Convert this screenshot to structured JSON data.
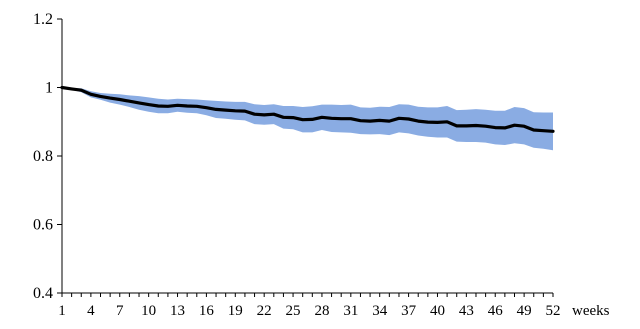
{
  "chart_data": {
    "type": "area",
    "xlabel": "weeks",
    "ylabel": "",
    "title": "",
    "xlim": [
      1,
      52
    ],
    "ylim": [
      0.4,
      1.2
    ],
    "y_ticks": [
      "0.4",
      "0.6",
      "0.8",
      "1",
      "1.2"
    ],
    "x_ticks": [
      "1",
      "4",
      "7",
      "10",
      "13",
      "16",
      "19",
      "22",
      "25",
      "28",
      "31",
      "34",
      "37",
      "40",
      "43",
      "46",
      "49",
      "52"
    ],
    "grid": false,
    "legend": "none",
    "colors": {
      "band": "#8aace3",
      "line": "#000000"
    },
    "x": [
      1,
      2,
      3,
      4,
      5,
      6,
      7,
      8,
      9,
      10,
      11,
      12,
      13,
      14,
      15,
      16,
      17,
      18,
      19,
      20,
      21,
      22,
      23,
      24,
      25,
      26,
      27,
      28,
      29,
      30,
      31,
      32,
      33,
      34,
      35,
      36,
      37,
      38,
      39,
      40,
      41,
      42,
      43,
      44,
      45,
      46,
      47,
      48,
      49,
      50,
      51,
      52
    ],
    "series": [
      {
        "kind": "line",
        "values": [
          1.0,
          0.996,
          0.992,
          0.98,
          0.974,
          0.969,
          0.965,
          0.96,
          0.955,
          0.95,
          0.946,
          0.945,
          0.948,
          0.946,
          0.945,
          0.941,
          0.936,
          0.934,
          0.932,
          0.931,
          0.922,
          0.92,
          0.922,
          0.913,
          0.912,
          0.906,
          0.907,
          0.913,
          0.91,
          0.909,
          0.909,
          0.903,
          0.902,
          0.904,
          0.902,
          0.91,
          0.908,
          0.902,
          0.899,
          0.898,
          0.9,
          0.888,
          0.888,
          0.889,
          0.887,
          0.883,
          0.882,
          0.89,
          0.887,
          0.876,
          0.874,
          0.872
        ]
      },
      {
        "kind": "band-upper",
        "values": [
          1.0,
          0.998,
          0.998,
          0.989,
          0.984,
          0.982,
          0.98,
          0.977,
          0.975,
          0.971,
          0.967,
          0.965,
          0.967,
          0.966,
          0.965,
          0.963,
          0.961,
          0.959,
          0.958,
          0.958,
          0.951,
          0.949,
          0.951,
          0.946,
          0.946,
          0.943,
          0.945,
          0.95,
          0.95,
          0.949,
          0.95,
          0.942,
          0.941,
          0.944,
          0.943,
          0.951,
          0.95,
          0.944,
          0.942,
          0.942,
          0.946,
          0.934,
          0.935,
          0.937,
          0.935,
          0.932,
          0.932,
          0.943,
          0.94,
          0.928,
          0.927,
          0.927
        ]
      },
      {
        "kind": "band-lower",
        "values": [
          1.0,
          0.994,
          0.986,
          0.971,
          0.964,
          0.956,
          0.95,
          0.943,
          0.935,
          0.929,
          0.925,
          0.925,
          0.929,
          0.926,
          0.925,
          0.919,
          0.911,
          0.909,
          0.906,
          0.904,
          0.893,
          0.891,
          0.893,
          0.88,
          0.878,
          0.869,
          0.869,
          0.876,
          0.87,
          0.869,
          0.868,
          0.864,
          0.863,
          0.864,
          0.861,
          0.869,
          0.866,
          0.86,
          0.856,
          0.854,
          0.854,
          0.842,
          0.841,
          0.841,
          0.839,
          0.834,
          0.832,
          0.837,
          0.834,
          0.824,
          0.821,
          0.817
        ]
      }
    ]
  }
}
